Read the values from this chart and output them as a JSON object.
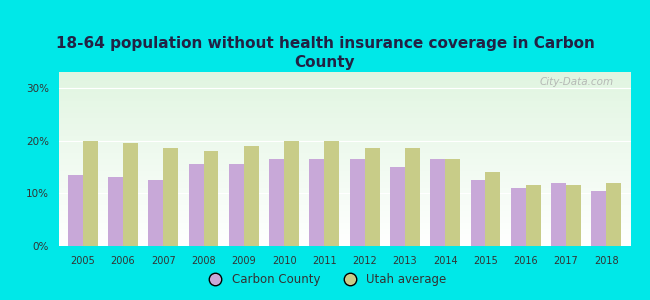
{
  "title": "18-64 population without health insurance coverage in Carbon\nCounty",
  "years": [
    2005,
    2006,
    2007,
    2008,
    2009,
    2010,
    2011,
    2012,
    2013,
    2014,
    2015,
    2016,
    2017,
    2018
  ],
  "carbon_county": [
    13.5,
    13.0,
    12.5,
    15.5,
    15.5,
    16.5,
    16.5,
    16.5,
    15.0,
    16.5,
    12.5,
    11.0,
    12.0,
    10.5
  ],
  "utah_average": [
    20.0,
    19.5,
    18.5,
    18.0,
    19.0,
    20.0,
    20.0,
    18.5,
    18.5,
    16.5,
    14.0,
    11.5,
    11.5,
    12.0
  ],
  "carbon_color": "#c8a8d8",
  "utah_color": "#c8cc88",
  "background_outer": "#00e8e8",
  "title_fontsize": 11,
  "title_color": "#222244",
  "yticks": [
    0,
    10,
    20,
    30
  ],
  "ylim": [
    0,
    33
  ],
  "watermark": "City-Data.com",
  "legend_carbon": "Carbon County",
  "legend_utah": "Utah average"
}
